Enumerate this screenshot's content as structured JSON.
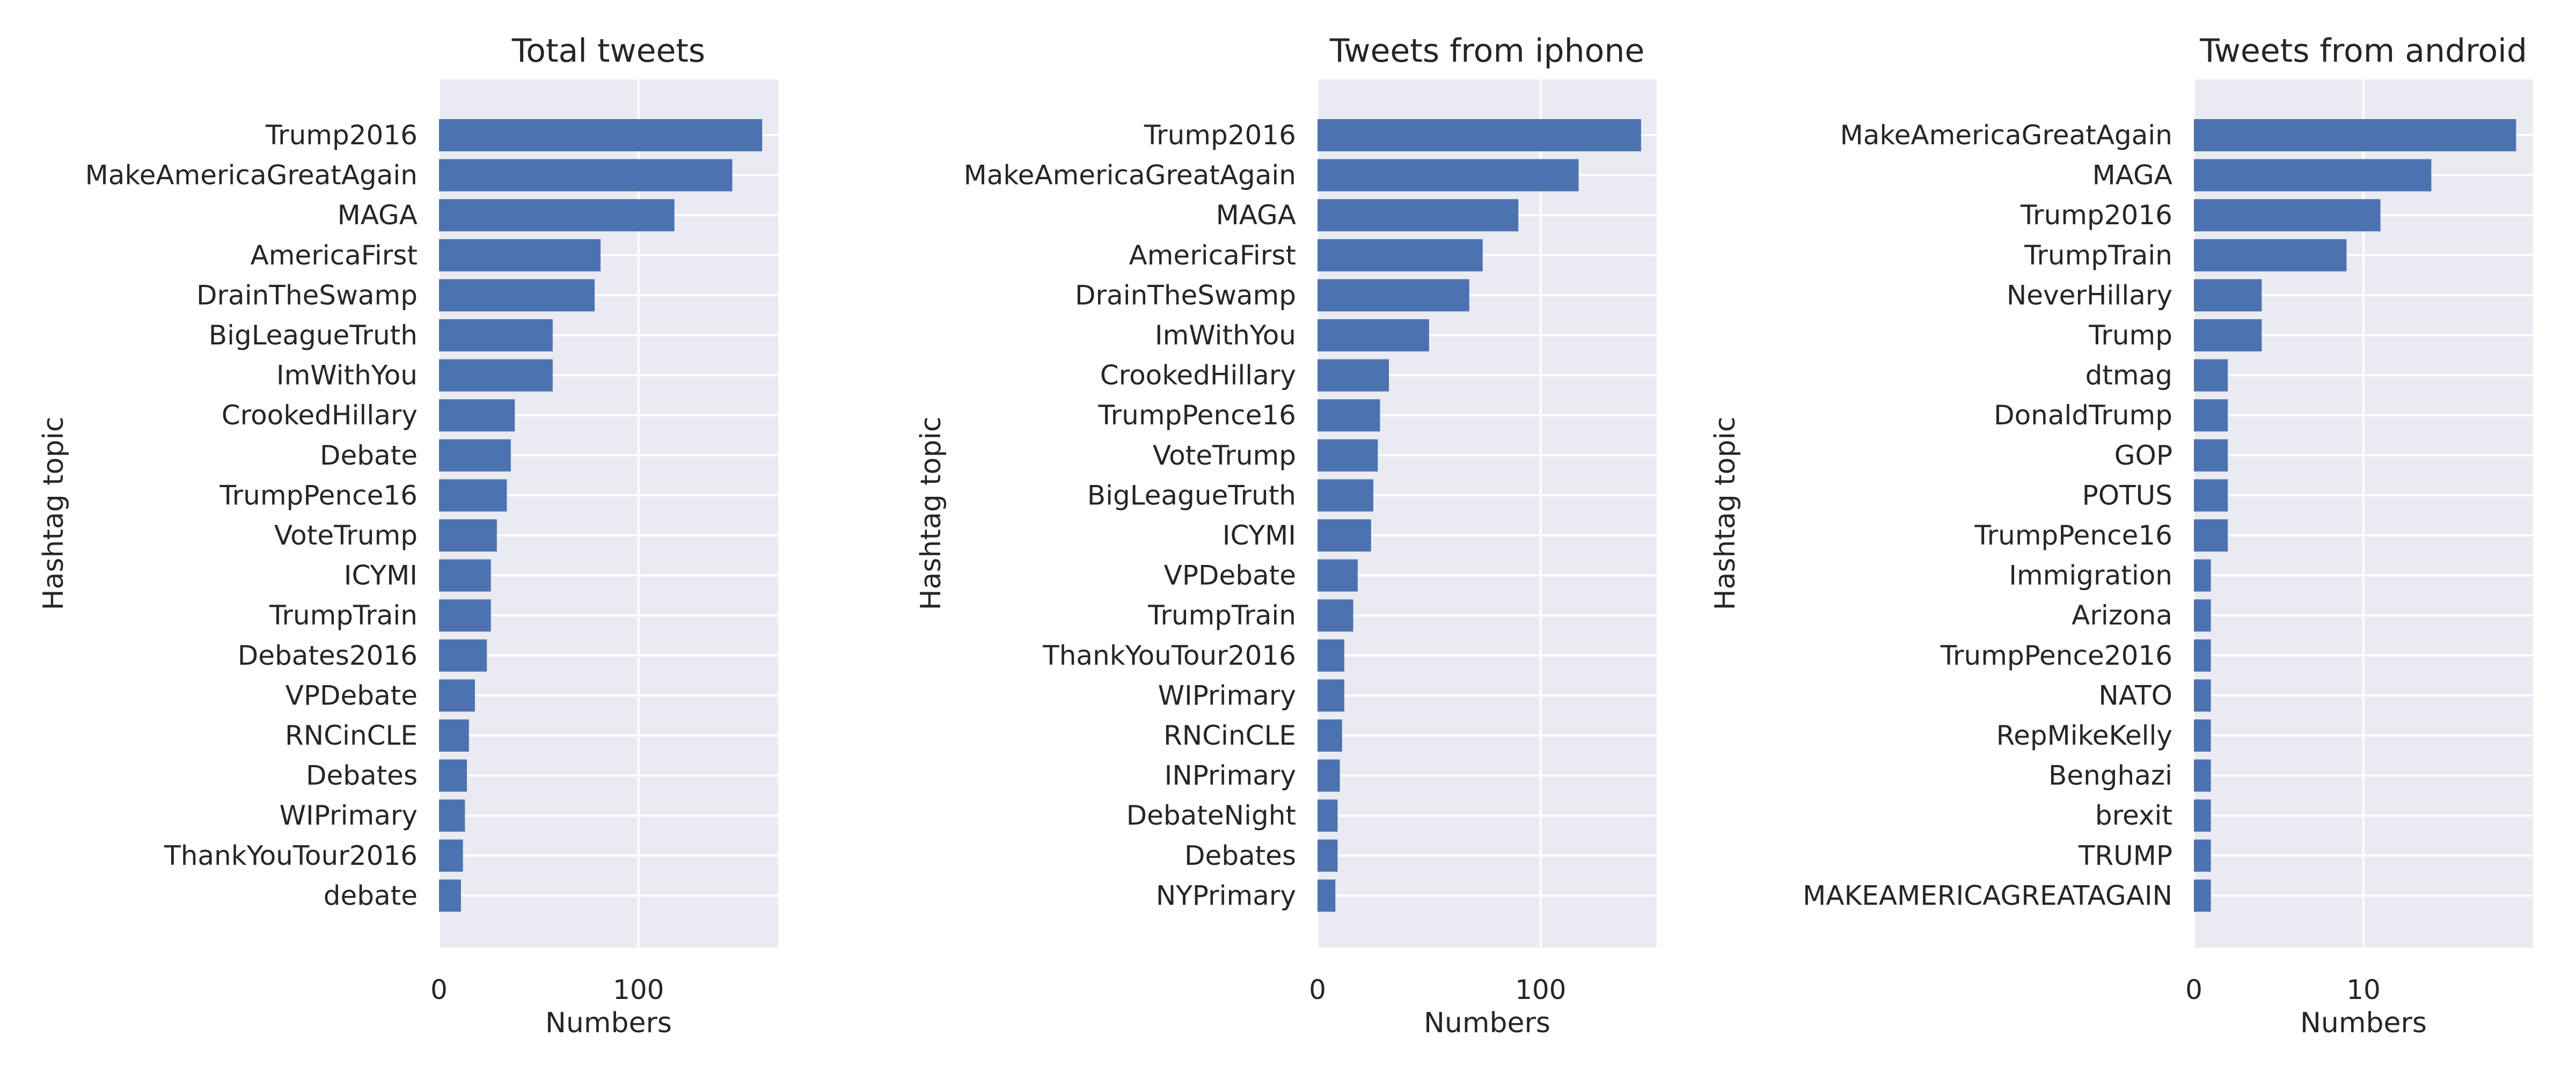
{
  "chart_data": [
    {
      "type": "bar",
      "orientation": "horizontal",
      "title": "Total tweets",
      "xlabel": "Numbers",
      "ylabel": "Hashtag topic",
      "xlim": [
        0,
        170
      ],
      "xticks": [
        0,
        100
      ],
      "grid": true,
      "categories": [
        "Trump2016",
        "MakeAmericaGreatAgain",
        "MAGA",
        "AmericaFirst",
        "DrainTheSwamp",
        "BigLeagueTruth",
        "ImWithYou",
        "CrookedHillary",
        "Debate",
        "TrumpPence16",
        "VoteTrump",
        "ICYMI",
        "TrumpTrain",
        "Debates2016",
        "VPDebate",
        "RNCinCLE",
        "Debates",
        "WIPrimary",
        "ThankYouTour2016",
        "debate"
      ],
      "values": [
        162,
        147,
        118,
        81,
        78,
        57,
        57,
        38,
        36,
        34,
        29,
        26,
        26,
        24,
        18,
        15,
        14,
        13,
        12,
        11
      ]
    },
    {
      "type": "bar",
      "orientation": "horizontal",
      "title": "Tweets from iphone",
      "xlabel": "Numbers",
      "ylabel": "Hashtag topic",
      "xlim": [
        0,
        152
      ],
      "xticks": [
        0,
        100
      ],
      "grid": true,
      "categories": [
        "Trump2016",
        "MakeAmericaGreatAgain",
        "MAGA",
        "AmericaFirst",
        "DrainTheSwamp",
        "ImWithYou",
        "CrookedHillary",
        "TrumpPence16",
        "VoteTrump",
        "BigLeagueTruth",
        "ICYMI",
        "VPDebate",
        "TrumpTrain",
        "ThankYouTour2016",
        "WIPrimary",
        "RNCinCLE",
        "INPrimary",
        "DebateNight",
        "Debates",
        "NYPrimary"
      ],
      "values": [
        145,
        117,
        90,
        74,
        68,
        50,
        32,
        28,
        27,
        25,
        24,
        18,
        16,
        12,
        12,
        11,
        10,
        9,
        9,
        8
      ]
    },
    {
      "type": "bar",
      "orientation": "horizontal",
      "title": "Tweets from android",
      "xlabel": "Numbers",
      "ylabel": "Hashtag topic",
      "xlim": [
        0,
        20
      ],
      "xticks": [
        0,
        10
      ],
      "grid": true,
      "categories": [
        "MakeAmericaGreatAgain",
        "MAGA",
        "Trump2016",
        "TrumpTrain",
        "NeverHillary",
        "Trump",
        "dtmag",
        "DonaldTrump",
        "GOP",
        "POTUS",
        "TrumpPence16",
        "Immigration",
        "Arizona",
        "TrumpPence2016",
        "NATO",
        "RepMikeKelly",
        "Benghazi",
        "brexit",
        "TRUMP",
        "MAKEAMERICAGREATAGAIN"
      ],
      "values": [
        19,
        14,
        11,
        9,
        4,
        4,
        2,
        2,
        2,
        2,
        2,
        1,
        1,
        1,
        1,
        1,
        1,
        1,
        1,
        1
      ]
    }
  ]
}
